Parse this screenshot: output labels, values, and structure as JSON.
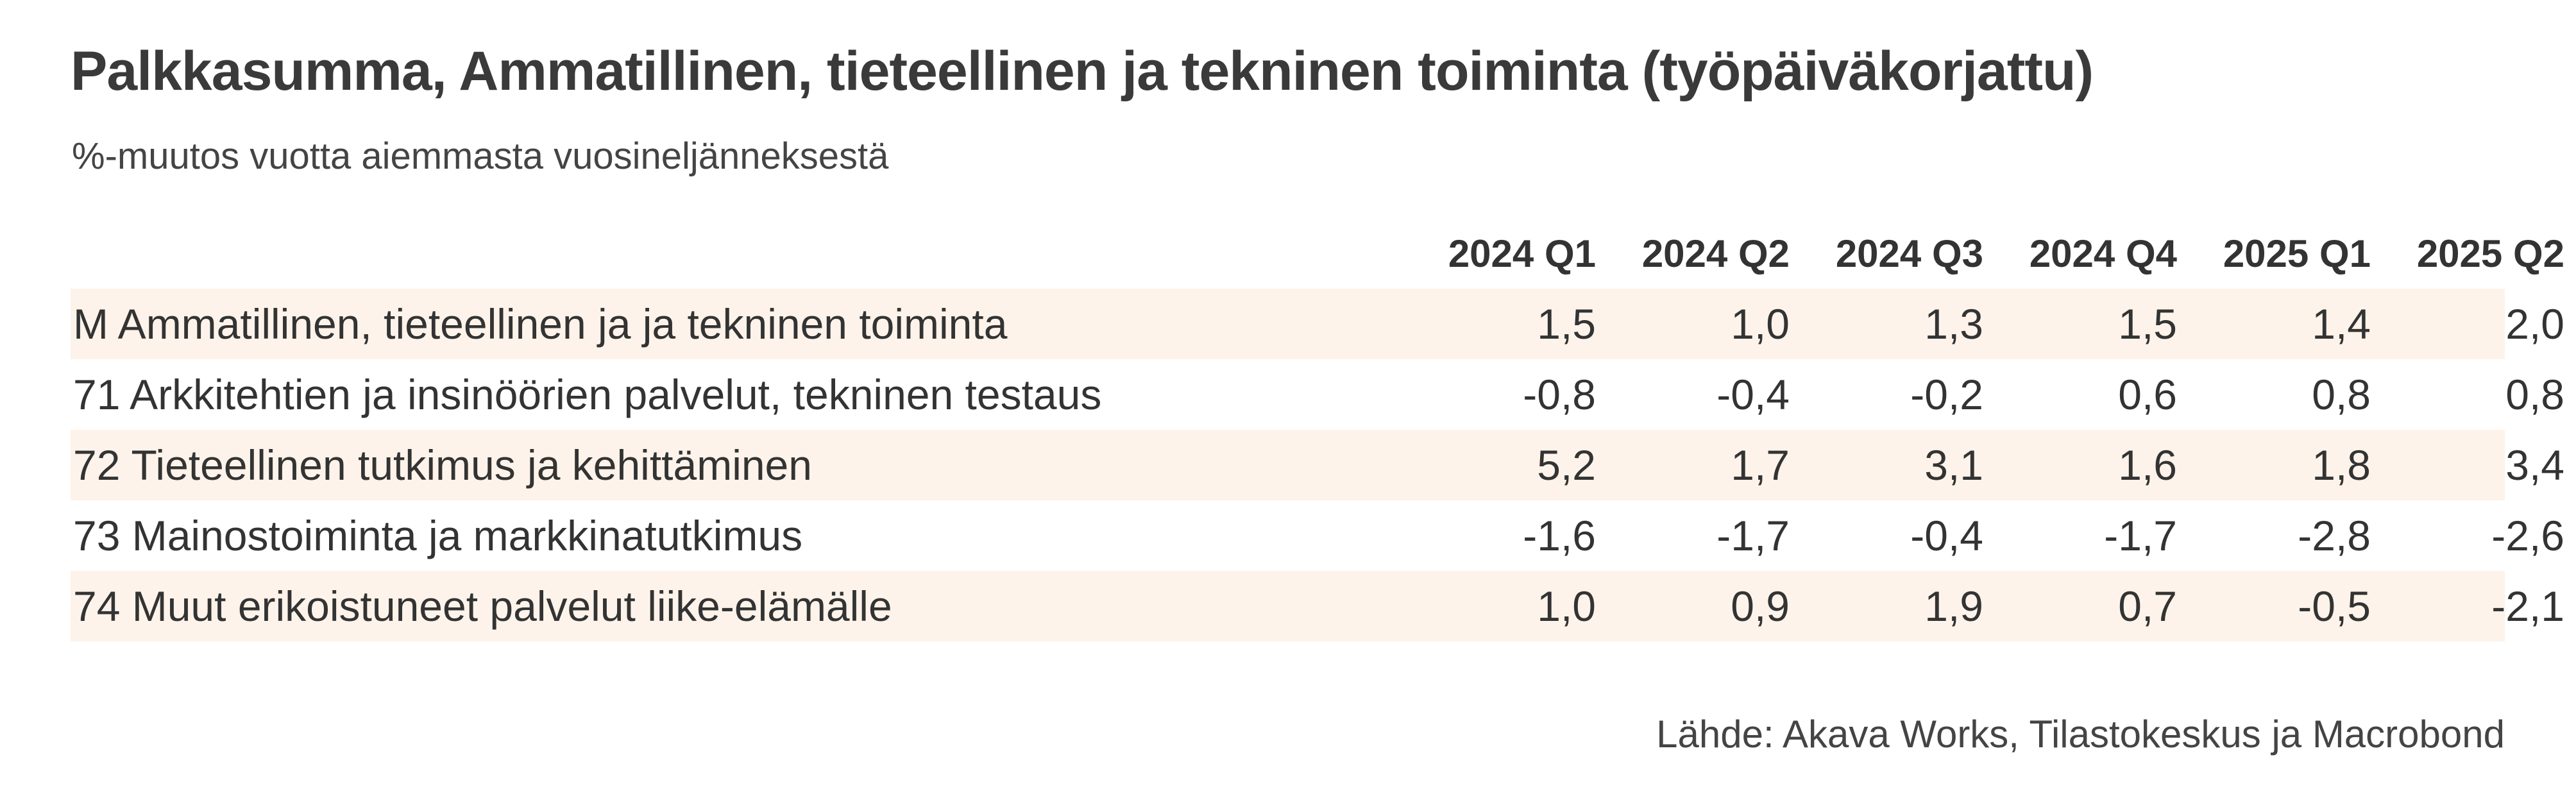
{
  "title": "Palkkasumma, Ammatillinen, tieteellinen ja tekninen toiminta (työpäiväkorjattu)",
  "subtitle": "%-muutos vuotta aiemmasta vuosineljänneksestä",
  "source": "Lähde: Akava Works, Tilastokeskus ja Macrobond",
  "colors": {
    "shaded_row": "#fdf3ea",
    "text": "#333333"
  },
  "chart_data": {
    "type": "table",
    "title": "Palkkasumma, Ammatillinen, tieteellinen ja tekninen toiminta (työpäiväkorjattu)",
    "subtitle": "%-muutos vuotta aiemmasta vuosineljänneksestä",
    "columns": [
      "2024 Q1",
      "2024 Q2",
      "2024 Q3",
      "2024 Q4",
      "2025 Q1",
      "2025 Q2"
    ],
    "rows": [
      {
        "label": "M Ammatillinen, tieteellinen ja ja tekninen toiminta",
        "values": [
          "1,5",
          "1,0",
          "1,3",
          "1,5",
          "1,4",
          "2,0"
        ]
      },
      {
        "label": "71 Arkkitehtien ja insinöörien palvelut, tekninen testaus",
        "values": [
          "-0,8",
          "-0,4",
          "-0,2",
          "0,6",
          "0,8",
          "0,8"
        ]
      },
      {
        "label": "72 Tieteellinen tutkimus ja kehittäminen",
        "values": [
          "5,2",
          "1,7",
          "3,1",
          "1,6",
          "1,8",
          "3,4"
        ]
      },
      {
        "label": "73 Mainostoiminta ja markkinatutkimus",
        "values": [
          "-1,6",
          "-1,7",
          "-0,4",
          "-1,7",
          "-2,8",
          "-2,6"
        ]
      },
      {
        "label": "74 Muut erikoistuneet palvelut liike-elämälle",
        "values": [
          "1,0",
          "0,9",
          "1,9",
          "0,7",
          "-0,5",
          "-2,1"
        ]
      }
    ]
  }
}
